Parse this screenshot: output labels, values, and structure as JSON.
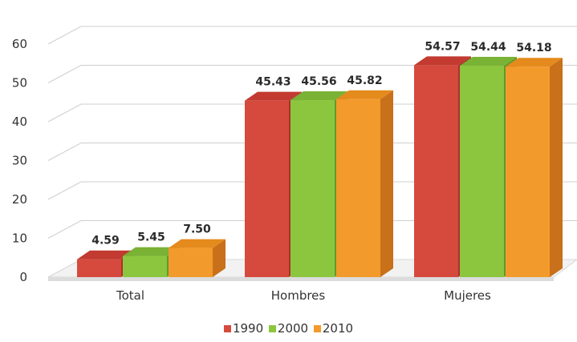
{
  "chart_data": {
    "type": "bar",
    "categories": [
      "Total",
      "Hombres",
      "Mujeres"
    ],
    "series": [
      {
        "name": "1990",
        "values": [
          4.59,
          45.43,
          54.57
        ],
        "labels": [
          "4.59",
          "45.43",
          "54.57"
        ],
        "color": "#d64a3e",
        "side": "#a8322a",
        "top": "#c23a30"
      },
      {
        "name": "2000",
        "values": [
          5.45,
          45.56,
          54.44
        ],
        "labels": [
          "5.45",
          "45.56",
          "54.44"
        ],
        "color": "#8cc63f",
        "side": "#5f9a2a",
        "top": "#79b235"
      },
      {
        "name": "2010",
        "values": [
          7.5,
          45.82,
          54.18
        ],
        "labels": [
          "7.50",
          "45.82",
          "54.18"
        ],
        "color": "#f39a2c",
        "side": "#c8701a",
        "top": "#e58a1c"
      }
    ],
    "y_ticks": [
      "0",
      "10",
      "20",
      "30",
      "40",
      "50",
      "60"
    ],
    "ylim": [
      0,
      60
    ],
    "grid": true,
    "legend_position": "bottom"
  }
}
